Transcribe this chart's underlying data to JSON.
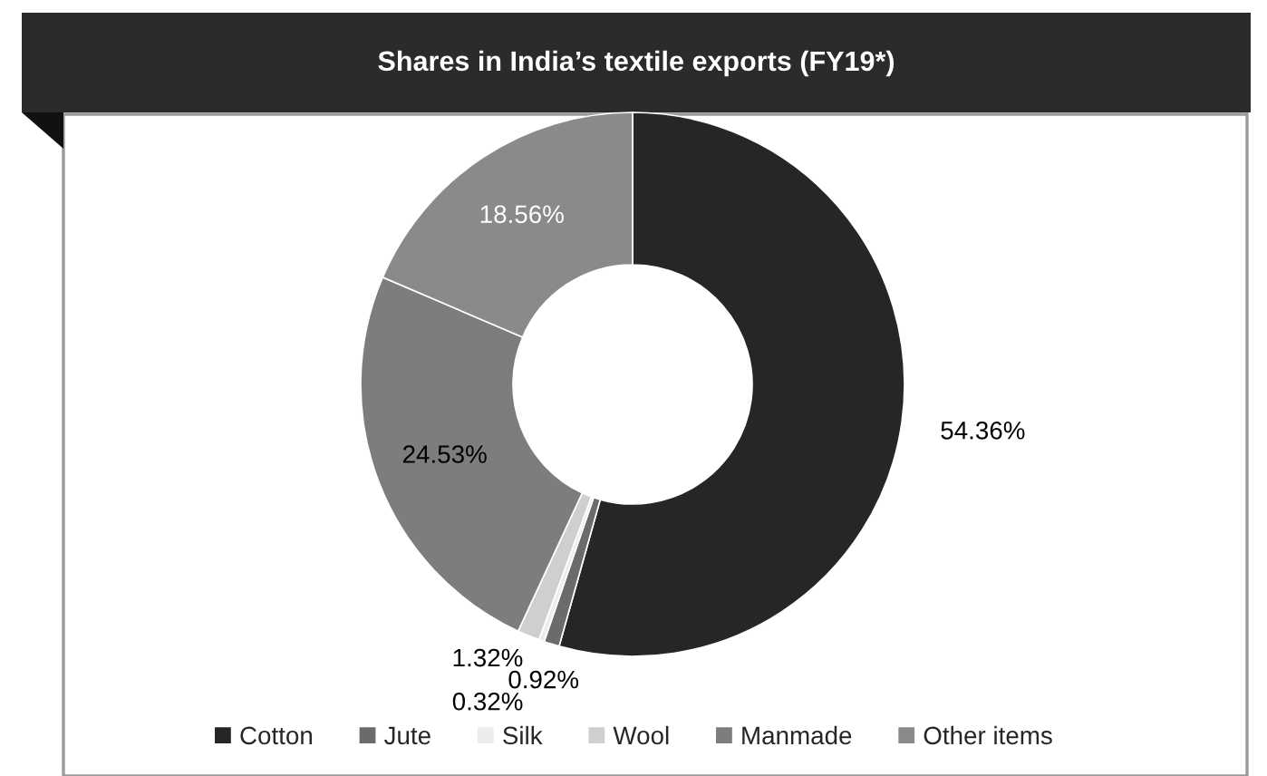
{
  "chart_data": {
    "type": "donut",
    "title": "Shares in India’s textile exports (FY19*)",
    "categories": [
      "Cotton",
      "Jute",
      "Silk",
      "Wool",
      "Manmade",
      "Other items"
    ],
    "values": [
      54.36,
      0.92,
      0.32,
      1.32,
      24.53,
      18.56
    ],
    "value_labels": [
      "54.36%",
      "0.92%",
      "0.32%",
      "1.32%",
      "24.53%",
      "18.56%"
    ],
    "colors": [
      "#262626",
      "#6b6b6b",
      "#ececec",
      "#cfcfcf",
      "#7d7d7d",
      "#8a8a8a"
    ],
    "legend": "bottom"
  }
}
